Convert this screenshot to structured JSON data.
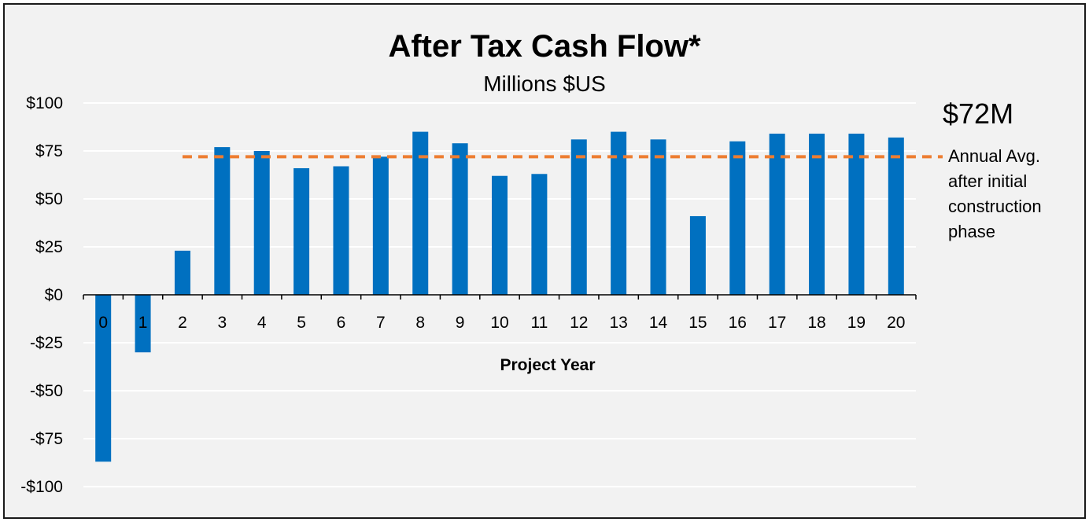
{
  "chart_data": {
    "type": "bar",
    "title": "After Tax Cash Flow*",
    "subtitle": "Millions $US",
    "xlabel": "Project Year",
    "ylabel": "",
    "categories": [
      "0",
      "1",
      "2",
      "3",
      "4",
      "5",
      "6",
      "7",
      "8",
      "9",
      "10",
      "11",
      "12",
      "13",
      "14",
      "15",
      "16",
      "17",
      "18",
      "19",
      "20"
    ],
    "values": [
      -87,
      -30,
      23,
      77,
      75,
      66,
      67,
      72,
      85,
      79,
      62,
      63,
      81,
      85,
      81,
      41,
      80,
      84,
      84,
      84,
      82
    ],
    "ylim": [
      -100,
      100
    ],
    "yticks": [
      100,
      75,
      50,
      25,
      0,
      -25,
      -50,
      -75,
      -100
    ],
    "ytick_labels": [
      "$100",
      "$75",
      "$50",
      "$25",
      "$0",
      "-$25",
      "-$50",
      "-$75",
      "-$100"
    ],
    "grid": true,
    "bar_color": "#0070c0",
    "average_line": {
      "value": 72,
      "value_label": "$72M",
      "label_lines": [
        "Annual Avg.",
        "after initial",
        "construction",
        "phase"
      ],
      "color": "#ed7d31",
      "style": "dashed",
      "start_category": "2"
    }
  }
}
